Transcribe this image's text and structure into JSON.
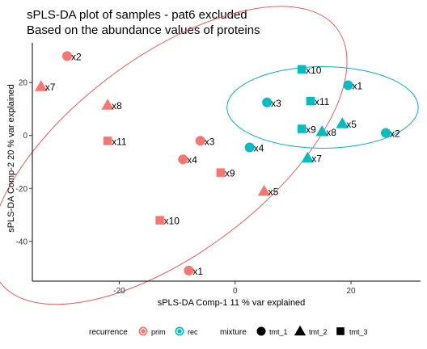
{
  "chart_data": {
    "type": "scatter",
    "title": [
      "sPLS-DA plot of samples - pat6 excluded",
      "Based on the abundance values of proteins"
    ],
    "xlabel": "sPLS-DA Comp-1 11 % var explained",
    "ylabel": "sPLS-DA Comp-2 20 % var explained",
    "xlim": [
      -35,
      32
    ],
    "ylim": [
      -55,
      35
    ],
    "xticks": [
      -20,
      0,
      20
    ],
    "yticks": [
      -40,
      -20,
      0,
      20
    ],
    "grid": false,
    "legend": {
      "position": "bottom",
      "color_title": "recurrence",
      "shape_title": "mixture",
      "color_items": [
        {
          "label": "prim",
          "color": "#F8766D"
        },
        {
          "label": "rec",
          "color": "#00BFC4"
        }
      ],
      "shape_items": [
        {
          "label": "tmt_1",
          "shape": "circle"
        },
        {
          "label": "tmt_2",
          "shape": "triangle"
        },
        {
          "label": "tmt_3",
          "shape": "square"
        }
      ]
    },
    "colors": {
      "prim": "#F8766D",
      "rec": "#00BFC4",
      "prim_ellipse": "#E8605A",
      "rec_ellipse": "#00B4C0"
    },
    "points": [
      {
        "group": "prim",
        "shape": "circle",
        "label": "x2",
        "x": -29,
        "y": 30
      },
      {
        "group": "prim",
        "shape": "triangle",
        "label": "x7",
        "x": -33.5,
        "y": 18.5
      },
      {
        "group": "prim",
        "shape": "triangle",
        "label": "x8",
        "x": -22,
        "y": 11.5
      },
      {
        "group": "prim",
        "shape": "square",
        "label": "x11",
        "x": -22,
        "y": -2
      },
      {
        "group": "prim",
        "shape": "circle",
        "label": "x3",
        "x": -6,
        "y": -2
      },
      {
        "group": "prim",
        "shape": "circle",
        "label": "x4",
        "x": -9,
        "y": -9
      },
      {
        "group": "prim",
        "shape": "square",
        "label": "x9",
        "x": -2.5,
        "y": -14
      },
      {
        "group": "prim",
        "shape": "triangle",
        "label": "x5",
        "x": 5,
        "y": -21
      },
      {
        "group": "prim",
        "shape": "square",
        "label": "x10",
        "x": -13,
        "y": -32
      },
      {
        "group": "prim",
        "shape": "circle",
        "label": "x1",
        "x": -8,
        "y": -51
      },
      {
        "group": "rec",
        "shape": "square",
        "label": "x10",
        "x": 11.5,
        "y": 25
      },
      {
        "group": "rec",
        "shape": "circle",
        "label": "x1",
        "x": 19.5,
        "y": 19
      },
      {
        "group": "rec",
        "shape": "circle",
        "label": "x3",
        "x": 5.5,
        "y": 12.5
      },
      {
        "group": "rec",
        "shape": "square",
        "label": "x11",
        "x": 13,
        "y": 13
      },
      {
        "group": "rec",
        "shape": "triangle",
        "label": "x5",
        "x": 18.5,
        "y": 4.5
      },
      {
        "group": "rec",
        "shape": "square",
        "label": "x9",
        "x": 11.5,
        "y": 2.5
      },
      {
        "group": "rec",
        "shape": "triangle",
        "label": "x8",
        "x": 15,
        "y": 1.5
      },
      {
        "group": "rec",
        "shape": "circle",
        "label": "x2",
        "x": 26,
        "y": 1
      },
      {
        "group": "rec",
        "shape": "circle",
        "label": "x4",
        "x": 2.5,
        "y": -4.5
      },
      {
        "group": "rec",
        "shape": "triangle",
        "label": "x7",
        "x": 12.5,
        "y": -8.5
      }
    ],
    "ellipses": [
      {
        "group": "prim",
        "cx": -11.5,
        "cy": -7.5,
        "rx": 36.4,
        "ry": 37,
        "angle_deg": -37
      },
      {
        "group": "rec",
        "cx": 15.1,
        "cy": 10.6,
        "rx": 16.5,
        "ry": 15.4,
        "angle_deg": 0
      }
    ]
  }
}
